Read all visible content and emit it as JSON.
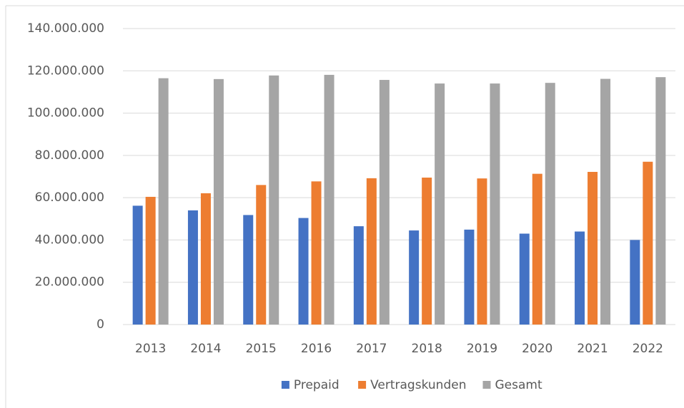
{
  "chart_data": {
    "type": "bar",
    "categories": [
      "2013",
      "2014",
      "2015",
      "2016",
      "2017",
      "2018",
      "2019",
      "2020",
      "2021",
      "2022"
    ],
    "series": [
      {
        "name": "Prepaid",
        "color": "#4472c4",
        "values": [
          56200000,
          54000000,
          51800000,
          50400000,
          46500000,
          44500000,
          44900000,
          43000000,
          44000000,
          40000000
        ]
      },
      {
        "name": "Vertragskunden",
        "color": "#ed7d31",
        "values": [
          60400000,
          62100000,
          66000000,
          67700000,
          69200000,
          69500000,
          69100000,
          71300000,
          72200000,
          77000000
        ]
      },
      {
        "name": "Gesamt",
        "color": "#a5a5a5",
        "values": [
          116500000,
          116100000,
          117800000,
          118100000,
          115700000,
          114000000,
          114000000,
          114300000,
          116200000,
          117000000
        ]
      }
    ],
    "ylim": [
      0,
      140000000
    ],
    "yticks": [
      0,
      {
        "value": 20000000,
        "label": "20.000.000"
      },
      {
        "value": 40000000,
        "label": "40.000.000"
      },
      {
        "value": 60000000,
        "label": "60.000.000"
      },
      {
        "value": 80000000,
        "label": "80.000.000"
      },
      {
        "value": 100000000,
        "label": "100.000.000"
      },
      {
        "value": 120000000,
        "label": "120.000.000"
      },
      {
        "value": 140000000,
        "label": "140.000.000"
      }
    ],
    "grid": true,
    "legend": "bottom"
  }
}
